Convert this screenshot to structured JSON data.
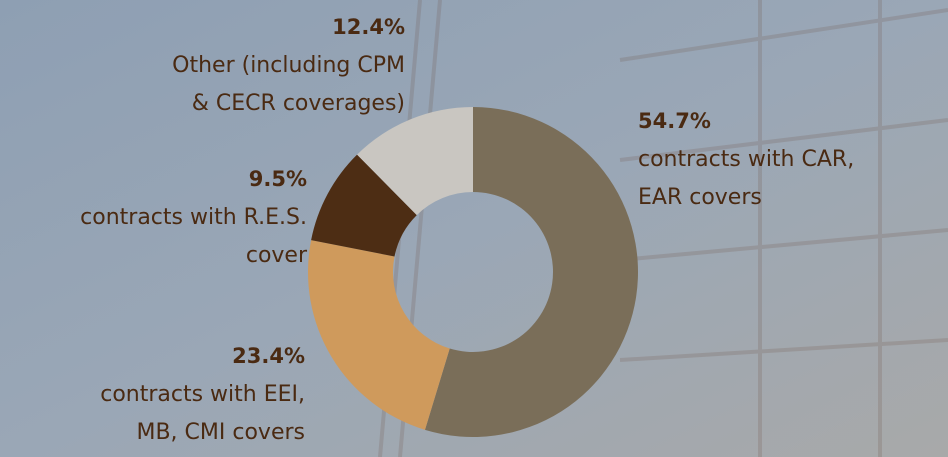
{
  "chart_data": {
    "type": "donut",
    "categories": [
      [
        "contracts with CAR,",
        "EAR covers"
      ],
      [
        "contracts with EEI,",
        "MB, CMI covers"
      ],
      [
        "contracts with R.E.S.",
        "cover"
      ],
      [
        "Other (including CPM",
        "& CECR coverages)"
      ]
    ],
    "values": [
      54.7,
      23.4,
      9.5,
      12.4
    ],
    "value_labels": [
      "54.7%",
      "23.4%",
      "9.5%",
      "12.4%"
    ],
    "colors": [
      "#7a6e59",
      "#cf9a5c",
      "#4d2d14",
      "#c9c6c1"
    ]
  }
}
